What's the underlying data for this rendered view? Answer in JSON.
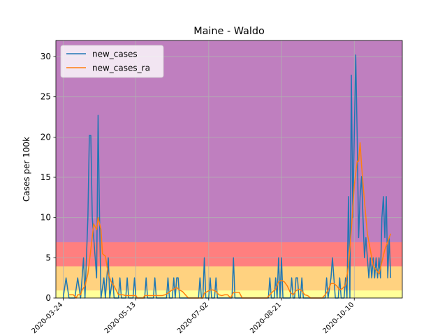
{
  "chart_data": {
    "type": "line",
    "title": "Maine - Waldo",
    "xlabel": "",
    "ylabel": "Cases per 100k",
    "ylim": [
      0,
      32
    ],
    "xlim": [
      "2020-03-19",
      "2020-11-12"
    ],
    "yticks": [
      0,
      5,
      10,
      15,
      20,
      25,
      30
    ],
    "xticks": [
      "2020-03-24",
      "2020-05-13",
      "2020-07-02",
      "2020-08-21",
      "2020-10-10"
    ],
    "grid": true,
    "legend_position": "upper-left",
    "bands": [
      {
        "from": 0,
        "to": 1,
        "color": "#ffff99"
      },
      {
        "from": 1,
        "to": 4,
        "color": "#ffd280"
      },
      {
        "from": 4,
        "to": 7,
        "color": "#ff7f7f"
      },
      {
        "from": 7,
        "to": 32,
        "color": "#bf7fbf"
      }
    ],
    "series": [
      {
        "name": "new_cases",
        "color": "#1f77b4",
        "points": [
          [
            "2020-03-24",
            0
          ],
          [
            "2020-03-26",
            2.5
          ],
          [
            "2020-03-28",
            0
          ],
          [
            "2020-04-01",
            0
          ],
          [
            "2020-04-03",
            2.5
          ],
          [
            "2020-04-05",
            0
          ],
          [
            "2020-04-07",
            5
          ],
          [
            "2020-04-08",
            0
          ],
          [
            "2020-04-10",
            10
          ],
          [
            "2020-04-11",
            20.2
          ],
          [
            "2020-04-12",
            20.2
          ],
          [
            "2020-04-13",
            10
          ],
          [
            "2020-04-14",
            7.5
          ],
          [
            "2020-04-15",
            5
          ],
          [
            "2020-04-16",
            2.5
          ],
          [
            "2020-04-17",
            22.7
          ],
          [
            "2020-04-18",
            10
          ],
          [
            "2020-04-19",
            0
          ],
          [
            "2020-04-21",
            2.5
          ],
          [
            "2020-04-22",
            0
          ],
          [
            "2020-04-24",
            5
          ],
          [
            "2020-04-25",
            0
          ],
          [
            "2020-04-27",
            2.5
          ],
          [
            "2020-04-28",
            0
          ],
          [
            "2020-05-01",
            0
          ],
          [
            "2020-05-02",
            2.5
          ],
          [
            "2020-05-03",
            0
          ],
          [
            "2020-05-06",
            0
          ],
          [
            "2020-05-07",
            2.5
          ],
          [
            "2020-05-08",
            0
          ],
          [
            "2020-05-11",
            0
          ],
          [
            "2020-05-12",
            2.5
          ],
          [
            "2020-05-13",
            0
          ],
          [
            "2020-05-19",
            0
          ],
          [
            "2020-05-20",
            2.5
          ],
          [
            "2020-05-21",
            0
          ],
          [
            "2020-05-25",
            0
          ],
          [
            "2020-05-26",
            2.5
          ],
          [
            "2020-05-27",
            0
          ],
          [
            "2020-06-03",
            0
          ],
          [
            "2020-06-04",
            2.5
          ],
          [
            "2020-06-05",
            0
          ],
          [
            "2020-06-07",
            0
          ],
          [
            "2020-06-08",
            2.5
          ],
          [
            "2020-06-09",
            0
          ],
          [
            "2020-06-10",
            2.5
          ],
          [
            "2020-06-11",
            2.5
          ],
          [
            "2020-06-12",
            0
          ],
          [
            "2020-06-25",
            0
          ],
          [
            "2020-06-26",
            2.5
          ],
          [
            "2020-06-27",
            0
          ],
          [
            "2020-06-28",
            0
          ],
          [
            "2020-06-29",
            5
          ],
          [
            "2020-06-30",
            0
          ],
          [
            "2020-07-02",
            0
          ],
          [
            "2020-07-03",
            2.5
          ],
          [
            "2020-07-04",
            0
          ],
          [
            "2020-07-06",
            0
          ],
          [
            "2020-07-07",
            2.5
          ],
          [
            "2020-07-08",
            0
          ],
          [
            "2020-07-18",
            0
          ],
          [
            "2020-07-19",
            5
          ],
          [
            "2020-07-20",
            0
          ],
          [
            "2020-08-12",
            0
          ],
          [
            "2020-08-13",
            2.5
          ],
          [
            "2020-08-14",
            0
          ],
          [
            "2020-08-16",
            0
          ],
          [
            "2020-08-17",
            2.5
          ],
          [
            "2020-08-18",
            0
          ],
          [
            "2020-08-19",
            5
          ],
          [
            "2020-08-20",
            0
          ],
          [
            "2020-08-21",
            5
          ],
          [
            "2020-08-22",
            0
          ],
          [
            "2020-08-27",
            0
          ],
          [
            "2020-08-28",
            2.5
          ],
          [
            "2020-08-29",
            0
          ],
          [
            "2020-08-30",
            0
          ],
          [
            "2020-08-31",
            2.5
          ],
          [
            "2020-09-01",
            2.5
          ],
          [
            "2020-09-02",
            0
          ],
          [
            "2020-09-03",
            0
          ],
          [
            "2020-09-04",
            2.5
          ],
          [
            "2020-09-05",
            0
          ],
          [
            "2020-09-20",
            0
          ],
          [
            "2020-09-21",
            2.5
          ],
          [
            "2020-09-22",
            0
          ],
          [
            "2020-09-24",
            2.5
          ],
          [
            "2020-09-25",
            5
          ],
          [
            "2020-09-26",
            2.5
          ],
          [
            "2020-09-27",
            0
          ],
          [
            "2020-09-29",
            0
          ],
          [
            "2020-09-30",
            2.5
          ],
          [
            "2020-10-01",
            0
          ],
          [
            "2020-10-03",
            0
          ],
          [
            "2020-10-04",
            2.5
          ],
          [
            "2020-10-05",
            0
          ],
          [
            "2020-10-06",
            12.6
          ],
          [
            "2020-10-07",
            0
          ],
          [
            "2020-10-08",
            27.7
          ],
          [
            "2020-10-09",
            10
          ],
          [
            "2020-10-10",
            20.2
          ],
          [
            "2020-10-11",
            30.2
          ],
          [
            "2020-10-12",
            20.2
          ],
          [
            "2020-10-13",
            7.5
          ],
          [
            "2020-10-14",
            12.6
          ],
          [
            "2020-10-15",
            15.1
          ],
          [
            "2020-10-16",
            10
          ],
          [
            "2020-10-17",
            5
          ],
          [
            "2020-10-18",
            7.5
          ],
          [
            "2020-10-19",
            5
          ],
          [
            "2020-10-20",
            2.5
          ],
          [
            "2020-10-21",
            5
          ],
          [
            "2020-10-22",
            2.5
          ],
          [
            "2020-10-23",
            5
          ],
          [
            "2020-10-24",
            2.5
          ],
          [
            "2020-10-25",
            5
          ],
          [
            "2020-10-26",
            2.5
          ],
          [
            "2020-10-27",
            5
          ],
          [
            "2020-10-28",
            2.5
          ],
          [
            "2020-10-29",
            10
          ],
          [
            "2020-10-30",
            12.6
          ],
          [
            "2020-10-31",
            7.5
          ],
          [
            "2020-11-01",
            12.6
          ],
          [
            "2020-11-02",
            2.5
          ],
          [
            "2020-11-03",
            7.5
          ],
          [
            "2020-11-04",
            2.5
          ]
        ]
      },
      {
        "name": "new_cases_ra",
        "color": "#ff7f0e",
        "points": [
          [
            "2020-03-28",
            0.4
          ],
          [
            "2020-03-31",
            0.4
          ],
          [
            "2020-04-02",
            0
          ],
          [
            "2020-04-03",
            0.4
          ],
          [
            "2020-04-05",
            0.4
          ],
          [
            "2020-04-06",
            1
          ],
          [
            "2020-04-08",
            1.5
          ],
          [
            "2020-04-10",
            3
          ],
          [
            "2020-04-12",
            6
          ],
          [
            "2020-04-14",
            9.2
          ],
          [
            "2020-04-16",
            8.5
          ],
          [
            "2020-04-17",
            10
          ],
          [
            "2020-04-19",
            8.5
          ],
          [
            "2020-04-20",
            5.5
          ],
          [
            "2020-04-22",
            5.2
          ],
          [
            "2020-04-24",
            3
          ],
          [
            "2020-04-26",
            2
          ],
          [
            "2020-04-28",
            1.5
          ],
          [
            "2020-05-01",
            0.4
          ],
          [
            "2020-05-04",
            0.4
          ],
          [
            "2020-05-06",
            0.3
          ],
          [
            "2020-05-12",
            0.3
          ],
          [
            "2020-05-13",
            0.3
          ],
          [
            "2020-05-14",
            0
          ],
          [
            "2020-05-18",
            0
          ],
          [
            "2020-05-19",
            0.3
          ],
          [
            "2020-05-31",
            0.3
          ],
          [
            "2020-06-02",
            0.4
          ],
          [
            "2020-06-04",
            0.6
          ],
          [
            "2020-06-06",
            0.9
          ],
          [
            "2020-06-08",
            1.1
          ],
          [
            "2020-06-10",
            1.3
          ],
          [
            "2020-06-12",
            1
          ],
          [
            "2020-06-14",
            0.8
          ],
          [
            "2020-06-16",
            0.4
          ],
          [
            "2020-06-18",
            0
          ],
          [
            "2020-06-28",
            0
          ],
          [
            "2020-06-29",
            0.6
          ],
          [
            "2020-07-01",
            0.8
          ],
          [
            "2020-07-03",
            1
          ],
          [
            "2020-07-05",
            1
          ],
          [
            "2020-07-07",
            0.8
          ],
          [
            "2020-07-09",
            0.4
          ],
          [
            "2020-07-11",
            0.3
          ],
          [
            "2020-07-13",
            0.4
          ],
          [
            "2020-07-15",
            0.4
          ],
          [
            "2020-07-17",
            0
          ],
          [
            "2020-07-19",
            0.7
          ],
          [
            "2020-07-21",
            0.7
          ],
          [
            "2020-07-23",
            0.7
          ],
          [
            "2020-07-25",
            0
          ],
          [
            "2020-08-11",
            0
          ],
          [
            "2020-08-13",
            0.4
          ],
          [
            "2020-08-15",
            0.8
          ],
          [
            "2020-08-17",
            1.1
          ],
          [
            "2020-08-19",
            2
          ],
          [
            "2020-08-21",
            2.2
          ],
          [
            "2020-08-23",
            2
          ],
          [
            "2020-08-25",
            1.5
          ],
          [
            "2020-08-27",
            0.7
          ],
          [
            "2020-08-29",
            0.4
          ],
          [
            "2020-08-31",
            0.9
          ],
          [
            "2020-09-02",
            1.1
          ],
          [
            "2020-09-04",
            0.9
          ],
          [
            "2020-09-06",
            0.4
          ],
          [
            "2020-09-08",
            0.3
          ],
          [
            "2020-09-10",
            0
          ],
          [
            "2020-09-18",
            0
          ],
          [
            "2020-09-20",
            0.4
          ],
          [
            "2020-09-22",
            1
          ],
          [
            "2020-09-24",
            1.8
          ],
          [
            "2020-09-26",
            1.8
          ],
          [
            "2020-09-28",
            1.5
          ],
          [
            "2020-09-30",
            1
          ],
          [
            "2020-10-02",
            1.2
          ],
          [
            "2020-10-04",
            1.6
          ],
          [
            "2020-10-06",
            4
          ],
          [
            "2020-10-08",
            8.5
          ],
          [
            "2020-10-10",
            14
          ],
          [
            "2020-10-12",
            17
          ],
          [
            "2020-10-13",
            17
          ],
          [
            "2020-10-14",
            19.3
          ],
          [
            "2020-10-15",
            16.5
          ],
          [
            "2020-10-17",
            12
          ],
          [
            "2020-10-19",
            8
          ],
          [
            "2020-10-21",
            6
          ],
          [
            "2020-10-23",
            4
          ],
          [
            "2020-10-25",
            3.5
          ],
          [
            "2020-10-27",
            3
          ],
          [
            "2020-10-29",
            4.5
          ],
          [
            "2020-10-31",
            6
          ],
          [
            "2020-11-02",
            7
          ],
          [
            "2020-11-04",
            8
          ]
        ]
      }
    ]
  }
}
